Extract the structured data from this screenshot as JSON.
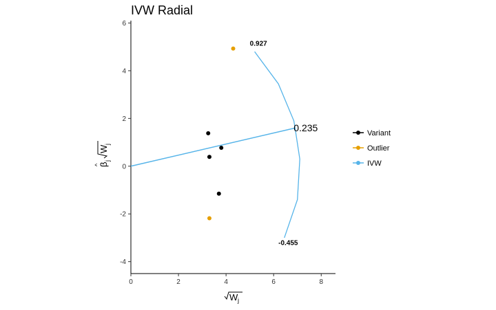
{
  "chart_data": {
    "type": "scatter",
    "title": "IVW Radial",
    "xlim": [
      0,
      8.6
    ],
    "ylim": [
      -4.5,
      6.1
    ],
    "x_ticks": [
      0,
      2,
      4,
      6,
      8
    ],
    "y_ticks": [
      -4,
      -2,
      0,
      2,
      4,
      6
    ],
    "x_tick_labels": [
      "0",
      "2",
      "4",
      "6",
      "8"
    ],
    "y_tick_labels": [
      "-4",
      "-2",
      "0",
      "2",
      "4",
      "6"
    ],
    "grid": false,
    "legend_position": "right",
    "series": [
      {
        "name": "Variant",
        "color": "#000000",
        "points": [
          {
            "x": 3.25,
            "y": 1.38
          },
          {
            "x": 3.8,
            "y": 0.77
          },
          {
            "x": 3.3,
            "y": 0.39
          },
          {
            "x": 3.7,
            "y": -1.15
          }
        ]
      },
      {
        "name": "Outlier",
        "color": "#E69F00",
        "points": [
          {
            "x": 4.3,
            "y": 4.93
          },
          {
            "x": 3.3,
            "y": -2.18
          }
        ]
      },
      {
        "name": "IVW",
        "color": "#56B4E9",
        "line": [
          {
            "x": 0,
            "y": 0
          },
          {
            "x": 6.9,
            "y": 1.6
          }
        ],
        "arc": [
          {
            "x": 5.2,
            "y": 4.8
          },
          {
            "x": 6.2,
            "y": 3.45
          },
          {
            "x": 6.85,
            "y": 1.9
          },
          {
            "x": 6.9,
            "y": 1.6
          },
          {
            "x": 7.1,
            "y": 0.3
          },
          {
            "x": 7.0,
            "y": -1.4
          },
          {
            "x": 6.45,
            "y": -3.0
          }
        ]
      }
    ],
    "annotations": [
      {
        "text": "0.927",
        "x": 5.0,
        "y": 5.05,
        "size": "small"
      },
      {
        "text": "0.235",
        "x": 6.9,
        "y": 1.6,
        "size": "big"
      },
      {
        "text": "-0.455",
        "x": 6.2,
        "y": -3.3,
        "size": "small"
      }
    ]
  }
}
